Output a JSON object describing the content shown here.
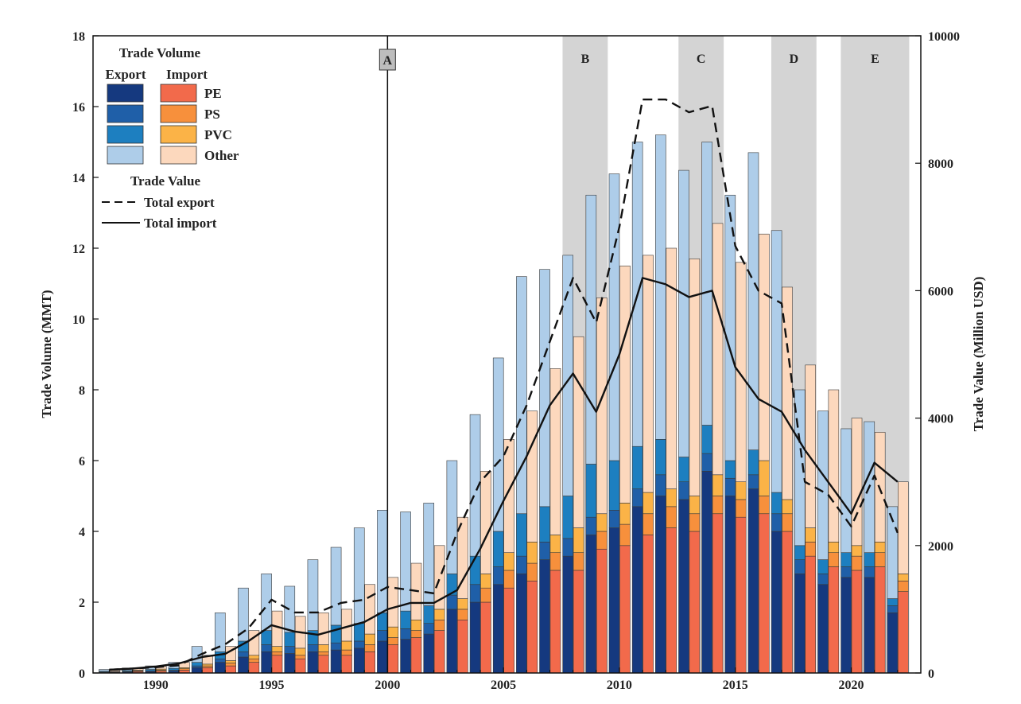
{
  "chart_data": {
    "type": "bar",
    "title": "",
    "xlabel": "",
    "ylabel": "Trade Volume (MMT)",
    "y2label": "Trade Value (Million USD)",
    "xlim": [
      1987.3,
      2023.0
    ],
    "ylim": [
      0,
      18
    ],
    "y2lim": [
      0,
      10000
    ],
    "xticks": [
      1990,
      1995,
      2000,
      2005,
      2010,
      2015,
      2020
    ],
    "yticks": [
      0,
      2,
      4,
      6,
      8,
      10,
      12,
      14,
      16,
      18
    ],
    "y2ticks": [
      0,
      2000,
      4000,
      6000,
      8000,
      10000
    ],
    "years": [
      1988,
      1989,
      1990,
      1991,
      1992,
      1993,
      1994,
      1995,
      1996,
      1997,
      1998,
      1999,
      2000,
      2001,
      2002,
      2003,
      2004,
      2005,
      2006,
      2007,
      2008,
      2009,
      2010,
      2011,
      2012,
      2013,
      2014,
      2015,
      2016,
      2017,
      2018,
      2019,
      2020,
      2021,
      2022
    ],
    "legend": {
      "title_volume": "Trade Volume",
      "export_header": "Export",
      "import_header": "Import",
      "polymers": [
        "PE",
        "PS",
        "PVC",
        "Other"
      ],
      "title_value": "Trade Value",
      "export_line": "Total export",
      "import_line": "Total import",
      "export_colors": [
        "#15397f",
        "#1f5fa8",
        "#1d7fc0",
        "#aecde9"
      ],
      "import_colors": [
        "#f26a4b",
        "#f7903c",
        "#fbb347",
        "#fcd8bd"
      ]
    },
    "export_series": [
      {
        "name": "PE",
        "values": [
          0.02,
          0.03,
          0.04,
          0.05,
          0.15,
          0.3,
          0.45,
          0.6,
          0.55,
          0.6,
          0.65,
          0.7,
          0.9,
          0.95,
          1.1,
          1.8,
          2.0,
          2.5,
          2.8,
          3.2,
          3.3,
          3.9,
          4.1,
          4.7,
          5.0,
          4.9,
          5.7,
          5.0,
          5.2,
          4.0,
          2.8,
          2.5,
          2.7,
          2.7,
          1.7
        ]
      },
      {
        "name": "PS",
        "values": [
          0.01,
          0.01,
          0.02,
          0.03,
          0.05,
          0.1,
          0.15,
          0.2,
          0.2,
          0.2,
          0.2,
          0.2,
          0.3,
          0.3,
          0.3,
          0.4,
          0.5,
          0.5,
          0.5,
          0.5,
          0.5,
          0.5,
          0.5,
          0.5,
          0.6,
          0.5,
          0.5,
          0.5,
          0.4,
          0.5,
          0.4,
          0.3,
          0.3,
          0.3,
          0.2
        ]
      },
      {
        "name": "PVC",
        "values": [
          0.02,
          0.03,
          0.04,
          0.05,
          0.1,
          0.2,
          0.3,
          0.4,
          0.4,
          0.4,
          0.5,
          0.5,
          0.5,
          0.5,
          0.5,
          0.6,
          0.8,
          1.0,
          1.2,
          1.0,
          1.2,
          1.5,
          1.4,
          1.2,
          1.0,
          0.7,
          0.8,
          0.5,
          0.7,
          0.6,
          0.4,
          0.4,
          0.4,
          0.4,
          0.2
        ]
      },
      {
        "name": "Other",
        "values": [
          0.05,
          0.07,
          0.1,
          0.17,
          0.45,
          1.1,
          1.5,
          1.6,
          1.3,
          2.0,
          2.2,
          2.7,
          2.9,
          2.8,
          2.9,
          3.2,
          4.0,
          4.9,
          6.7,
          6.7,
          6.8,
          7.6,
          8.1,
          8.6,
          8.6,
          8.1,
          8.0,
          7.5,
          8.4,
          7.4,
          4.4,
          4.2,
          3.5,
          3.7,
          2.6
        ]
      }
    ],
    "import_series": [
      {
        "name": "PE",
        "values": [
          0.02,
          0.04,
          0.05,
          0.08,
          0.15,
          0.2,
          0.3,
          0.5,
          0.4,
          0.5,
          0.5,
          0.6,
          0.8,
          1.0,
          1.2,
          1.5,
          2.0,
          2.4,
          2.6,
          2.9,
          2.9,
          3.5,
          3.6,
          3.9,
          4.1,
          4.0,
          4.5,
          4.4,
          4.5,
          4.0,
          3.3,
          3.0,
          2.9,
          3.0,
          2.3
        ]
      },
      {
        "name": "PS",
        "values": [
          0.01,
          0.02,
          0.03,
          0.04,
          0.05,
          0.08,
          0.1,
          0.1,
          0.1,
          0.1,
          0.15,
          0.2,
          0.2,
          0.2,
          0.3,
          0.3,
          0.4,
          0.5,
          0.5,
          0.5,
          0.5,
          0.5,
          0.6,
          0.6,
          0.6,
          0.5,
          0.5,
          0.5,
          0.5,
          0.5,
          0.4,
          0.4,
          0.4,
          0.4,
          0.3
        ]
      },
      {
        "name": "PVC",
        "values": [
          0.01,
          0.02,
          0.03,
          0.03,
          0.05,
          0.07,
          0.1,
          0.15,
          0.2,
          0.2,
          0.25,
          0.3,
          0.3,
          0.3,
          0.3,
          0.3,
          0.4,
          0.5,
          0.6,
          0.5,
          0.7,
          0.5,
          0.6,
          0.6,
          0.5,
          0.5,
          0.6,
          0.5,
          1.0,
          0.4,
          0.4,
          0.3,
          0.3,
          0.3,
          0.2
        ]
      },
      {
        "name": "Other",
        "values": [
          0.03,
          0.05,
          0.08,
          0.15,
          0.25,
          0.4,
          0.7,
          1.0,
          0.9,
          0.9,
          0.9,
          1.4,
          1.4,
          1.6,
          1.8,
          2.3,
          2.9,
          3.2,
          3.7,
          4.7,
          5.4,
          6.1,
          6.7,
          6.7,
          6.8,
          6.7,
          7.1,
          6.2,
          6.4,
          6.0,
          4.6,
          4.3,
          3.6,
          3.1,
          2.6
        ]
      }
    ],
    "value_lines": [
      {
        "name": "Total export",
        "style": "dashed",
        "values": [
          50,
          70,
          90,
          120,
          300,
          450,
          700,
          1150,
          950,
          950,
          1100,
          1150,
          1350,
          1300,
          1250,
          2200,
          3000,
          3400,
          4200,
          5200,
          6200,
          5500,
          7000,
          9000,
          9000,
          8800,
          8900,
          6700,
          6000,
          5800,
          3000,
          2800,
          2300,
          3100,
          2200
        ]
      },
      {
        "name": "Total import",
        "style": "solid",
        "values": [
          50,
          70,
          100,
          150,
          250,
          300,
          500,
          750,
          650,
          600,
          700,
          800,
          1000,
          1100,
          1100,
          1300,
          1950,
          2700,
          3400,
          4200,
          4700,
          4100,
          5000,
          6200,
          6100,
          5900,
          6000,
          4800,
          4300,
          4100,
          3500,
          3000,
          2500,
          3300,
          3000
        ]
      }
    ],
    "periods": [
      {
        "label": "A",
        "type": "marker",
        "x": 2000.0
      },
      {
        "label": "B",
        "type": "band",
        "x_start": 2007.55,
        "x_end": 2009.5
      },
      {
        "label": "C",
        "type": "band",
        "x_start": 2012.55,
        "x_end": 2014.5
      },
      {
        "label": "D",
        "type": "band",
        "x_start": 2016.55,
        "x_end": 2018.5
      },
      {
        "label": "E",
        "type": "band",
        "x_start": 2019.55,
        "x_end": 2022.5
      }
    ]
  }
}
